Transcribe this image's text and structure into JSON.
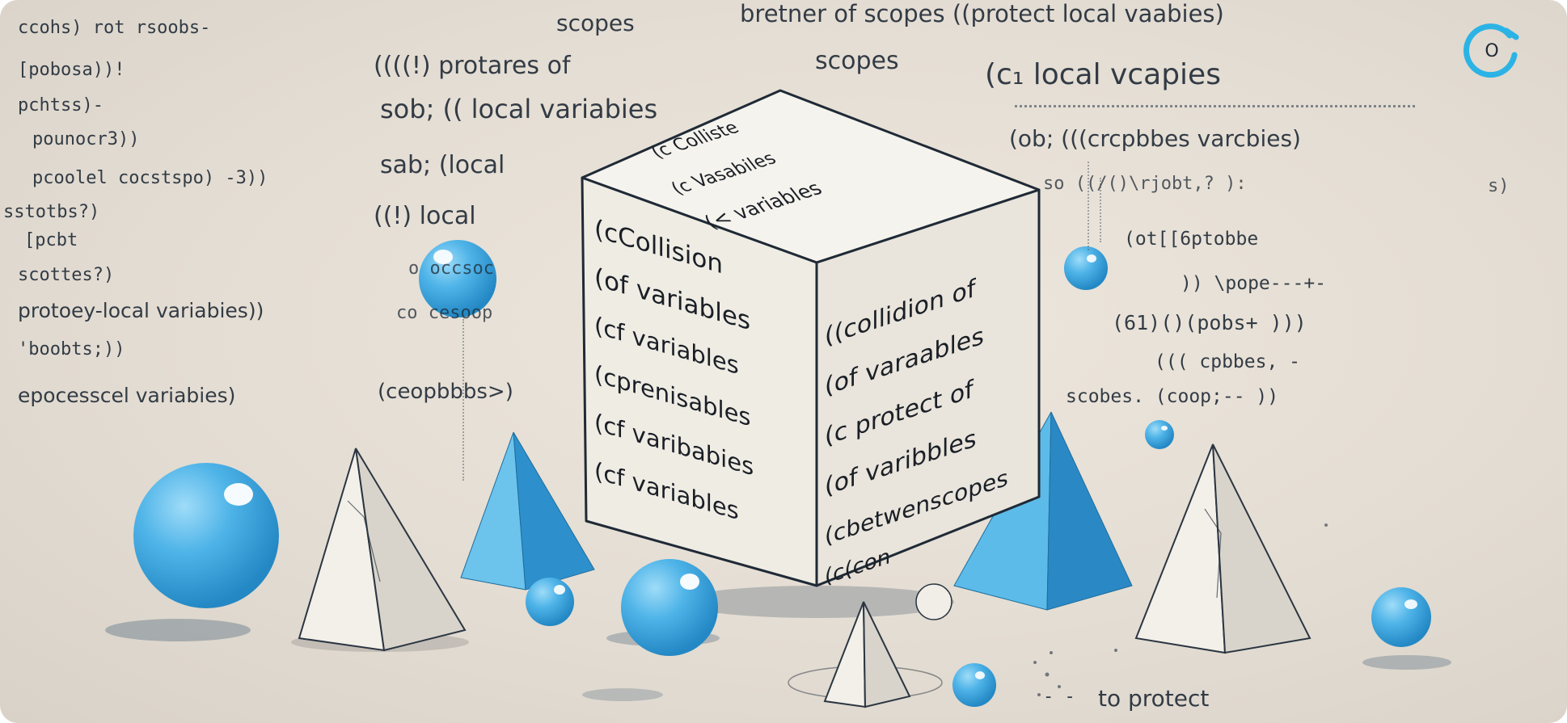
{
  "left_code": [
    "ccohs) rot rsoobs-",
    "[pobosa))!",
    "pchtss)-",
    "pounocr3))",
    "pcoolel cocstspo) -3))",
    "sstotbs?)",
    "[pcbt",
    "scottes?)",
    "protoey-local variabies))",
    "'boobts;))",
    "epocesscel variabies)"
  ],
  "mid_code": [
    "scopes",
    "((((!) protares of",
    "sob; (( local variabies",
    "sab; (local",
    "((!) local",
    "o occsoc",
    "co cesoop",
    "(ceopbbbs>)"
  ],
  "top_code": [
    "bretner of scopes ((protect local vaabies)",
    "scopes"
  ],
  "right_code": [
    "(c₁ local vcapies",
    "(ob; (((crcpbbes varcbies)",
    "so ((/()\\rjobt,? ):",
    "s)",
    "(ot[[6ptobbe",
    ")) \\pope---+-",
    "(61)()(pobs+ )))",
    "((( cpbbes, -",
    "scobes. (coop;-- ))"
  ],
  "bottom_text": "to protect",
  "cube": {
    "top_face": [
      "(c Colliste",
      "(c Vasabiles",
      "(< variables"
    ],
    "left_face": [
      "(cCollision",
      "(of variables",
      "(cf variables",
      "(cprenisables",
      "(cf varibabies",
      "(cf variables"
    ],
    "right_face": [
      "((collidion of",
      "(of varaables",
      "(c protect of",
      "(of varibbles",
      "(cbetwenscopes",
      "(c(con"
    ]
  },
  "logo": {
    "label": "O",
    "color": "#2bb3e6"
  },
  "colors": {
    "accent_blue": "#4fb4e8",
    "paper": "#e6dfd5",
    "ink": "#1f2a36"
  }
}
